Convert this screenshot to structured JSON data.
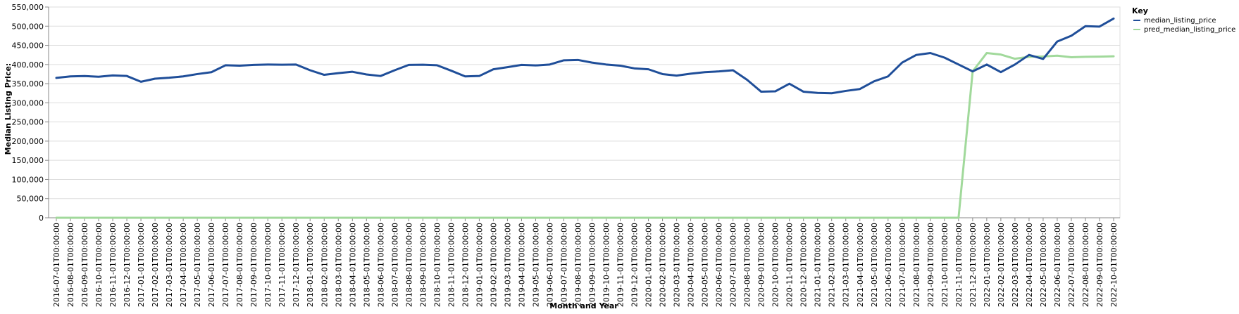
{
  "chart_data": {
    "type": "line",
    "xlabel": "Month and Year",
    "ylabel": "Median Listing Price:",
    "ylim": [
      0,
      550000
    ],
    "yticks": [
      "0",
      "50,000",
      "100,000",
      "150,000",
      "200,000",
      "250,000",
      "300,000",
      "350,000",
      "400,000",
      "450,000",
      "500,000",
      "550,000"
    ],
    "grid": true,
    "legend": {
      "title": "Key",
      "placement": "top-right"
    },
    "x": [
      "2016-07-01T00:00:00",
      "2016-08-01T00:00:00",
      "2016-09-01T00:00:00",
      "2016-10-01T00:00:00",
      "2016-11-01T00:00:00",
      "2016-12-01T00:00:00",
      "2017-01-01T00:00:00",
      "2017-02-01T00:00:00",
      "2017-03-01T00:00:00",
      "2017-04-01T00:00:00",
      "2017-05-01T00:00:00",
      "2017-06-01T00:00:00",
      "2017-07-01T00:00:00",
      "2017-08-01T00:00:00",
      "2017-09-01T00:00:00",
      "2017-10-01T00:00:00",
      "2017-11-01T00:00:00",
      "2017-12-01T00:00:00",
      "2018-01-01T00:00:00",
      "2018-02-01T00:00:00",
      "2018-03-01T00:00:00",
      "2018-04-01T00:00:00",
      "2018-05-01T00:00:00",
      "2018-06-01T00:00:00",
      "2018-07-01T00:00:00",
      "2018-08-01T00:00:00",
      "2018-09-01T00:00:00",
      "2018-10-01T00:00:00",
      "2018-11-01T00:00:00",
      "2018-12-01T00:00:00",
      "2019-01-01T00:00:00",
      "2019-02-01T00:00:00",
      "2019-03-01T00:00:00",
      "2019-04-01T00:00:00",
      "2019-05-01T00:00:00",
      "2019-06-01T00:00:00",
      "2019-07-01T00:00:00",
      "2019-08-01T00:00:00",
      "2019-09-01T00:00:00",
      "2019-10-01T00:00:00",
      "2019-11-01T00:00:00",
      "2019-12-01T00:00:00",
      "2020-01-01T00:00:00",
      "2020-02-01T00:00:00",
      "2020-03-01T00:00:00",
      "2020-04-01T00:00:00",
      "2020-05-01T00:00:00",
      "2020-06-01T00:00:00",
      "2020-07-01T00:00:00",
      "2020-08-01T00:00:00",
      "2020-09-01T00:00:00",
      "2020-10-01T00:00:00",
      "2020-11-01T00:00:00",
      "2020-12-01T00:00:00",
      "2021-01-01T00:00:00",
      "2021-02-01T00:00:00",
      "2021-03-01T00:00:00",
      "2021-04-01T00:00:00",
      "2021-05-01T00:00:00",
      "2021-06-01T00:00:00",
      "2021-07-01T00:00:00",
      "2021-08-01T00:00:00",
      "2021-09-01T00:00:00",
      "2021-10-01T00:00:00",
      "2021-11-01T00:00:00",
      "2021-12-01T00:00:00",
      "2022-01-01T00:00:00",
      "2022-02-01T00:00:00",
      "2022-03-01T00:00:00",
      "2022-04-01T00:00:00",
      "2022-05-01T00:00:00",
      "2022-06-01T00:00:00",
      "2022-07-01T00:00:00",
      "2022-08-01T00:00:00",
      "2022-09-01T00:00:00",
      "2022-10-01T00:00:00"
    ],
    "series": [
      {
        "name": "median_listing_price",
        "color": "#1f4e99",
        "values": [
          365000,
          369000,
          369900,
          368000,
          371500,
          370000,
          355000,
          363000,
          365500,
          369000,
          375000,
          380000,
          398000,
          397000,
          399000,
          400000,
          399500,
          399900,
          385000,
          373000,
          377500,
          381000,
          374000,
          370000,
          385000,
          399000,
          399500,
          398000,
          384000,
          369000,
          370000,
          387500,
          393000,
          399000,
          397500,
          399900,
          411000,
          411900,
          405000,
          400000,
          397000,
          389900,
          387500,
          375000,
          371000,
          376000,
          379900,
          382000,
          385000,
          360000,
          329000,
          330000,
          349900,
          329000,
          325900,
          325000,
          331000,
          336000,
          356000,
          369000,
          405000,
          424900,
          429900,
          418000,
          400000,
          382000,
          399900,
          380000,
          400000,
          425000,
          414500,
          460000,
          475000,
          500000,
          499000,
          519900
        ]
      },
      {
        "name": "pred_median_listing_price",
        "color": "#a1d99b",
        "values": [
          0,
          0,
          0,
          0,
          0,
          0,
          0,
          0,
          0,
          0,
          0,
          0,
          0,
          0,
          0,
          0,
          0,
          0,
          0,
          0,
          0,
          0,
          0,
          0,
          0,
          0,
          0,
          0,
          0,
          0,
          0,
          0,
          0,
          0,
          0,
          0,
          0,
          0,
          0,
          0,
          0,
          0,
          0,
          0,
          0,
          0,
          0,
          0,
          0,
          0,
          0,
          0,
          0,
          0,
          0,
          0,
          0,
          0,
          0,
          0,
          0,
          0,
          0,
          0,
          0,
          382000,
          430000,
          426000,
          415000,
          420000,
          421000,
          423000,
          419000,
          420000,
          420500,
          421500
        ]
      }
    ]
  }
}
